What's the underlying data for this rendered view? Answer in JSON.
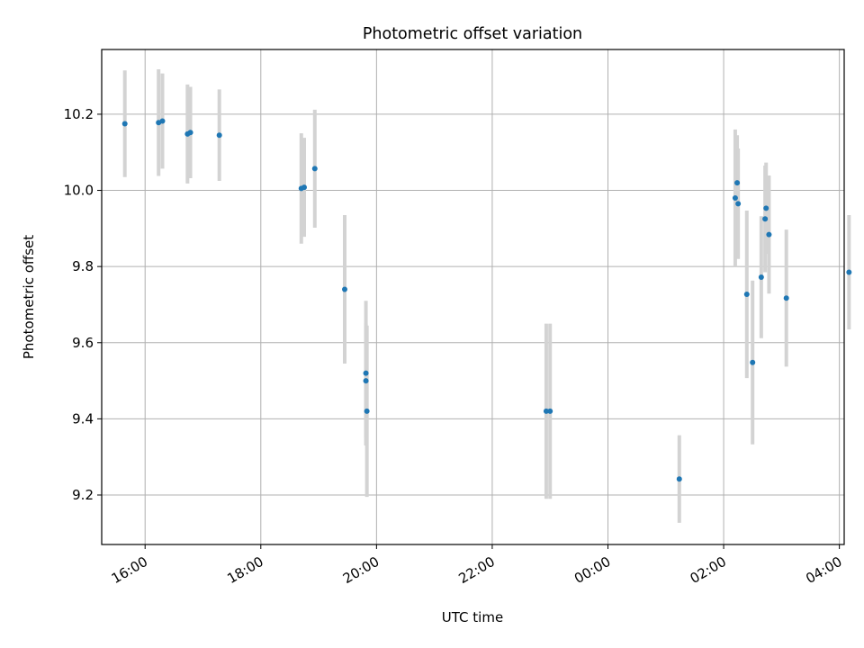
{
  "chart_data": {
    "type": "scatter",
    "title": "Photometric offset variation",
    "xlabel": "UTC time",
    "ylabel": "Photometric offset",
    "x_axis": {
      "kind": "time",
      "lim": [
        "15:15",
        "04:05"
      ],
      "ticks": [
        "16:00",
        "18:00",
        "20:00",
        "22:00",
        "00:00",
        "02:00",
        "04:00"
      ]
    },
    "y_axis": {
      "lim": [
        9.07,
        10.37
      ],
      "ticks": [
        "9.2",
        "9.4",
        "9.6",
        "9.8",
        "10.0",
        "10.2"
      ]
    },
    "grid": true,
    "colors": {
      "marker": "#1f77b4",
      "errorbar": "#d3d3d3",
      "grid": "#b0b0b0"
    },
    "points": [
      {
        "t": "15:39",
        "y": 10.175,
        "err": 0.14
      },
      {
        "t": "16:14",
        "y": 10.178,
        "err": 0.14
      },
      {
        "t": "16:18",
        "y": 10.182,
        "err": 0.125
      },
      {
        "t": "16:44",
        "y": 10.148,
        "err": 0.13
      },
      {
        "t": "16:47",
        "y": 10.152,
        "err": 0.12
      },
      {
        "t": "17:17",
        "y": 10.145,
        "err": 0.12
      },
      {
        "t": "18:42",
        "y": 10.005,
        "err": 0.145
      },
      {
        "t": "18:45",
        "y": 10.008,
        "err": 0.13
      },
      {
        "t": "18:56",
        "y": 10.057,
        "err": 0.155
      },
      {
        "t": "19:27",
        "y": 9.74,
        "err": 0.195
      },
      {
        "t": "19:49",
        "y": 9.52,
        "err": 0.19
      },
      {
        "t": "19:49",
        "y": 9.5,
        "err": 0.15
      },
      {
        "t": "19:50",
        "y": 9.42,
        "err": 0.225
      },
      {
        "t": "22:56",
        "y": 9.42,
        "err": 0.23
      },
      {
        "t": "23:00",
        "y": 9.42,
        "err": 0.23
      },
      {
        "t": "01:14",
        "y": 9.242,
        "err": 0.115
      },
      {
        "t": "02:12",
        "y": 9.98,
        "err": 0.18
      },
      {
        "t": "02:14",
        "y": 10.02,
        "err": 0.125
      },
      {
        "t": "02:15",
        "y": 9.965,
        "err": 0.145
      },
      {
        "t": "02:24",
        "y": 9.727,
        "err": 0.22
      },
      {
        "t": "02:30",
        "y": 9.548,
        "err": 0.215
      },
      {
        "t": "02:39",
        "y": 9.772,
        "err": 0.16
      },
      {
        "t": "02:43",
        "y": 9.925,
        "err": 0.14
      },
      {
        "t": "02:44",
        "y": 9.953,
        "err": 0.12
      },
      {
        "t": "02:47",
        "y": 9.884,
        "err": 0.155
      },
      {
        "t": "03:05",
        "y": 9.717,
        "err": 0.18
      },
      {
        "t": "04:10",
        "y": 9.785,
        "err": 0.15
      }
    ]
  }
}
